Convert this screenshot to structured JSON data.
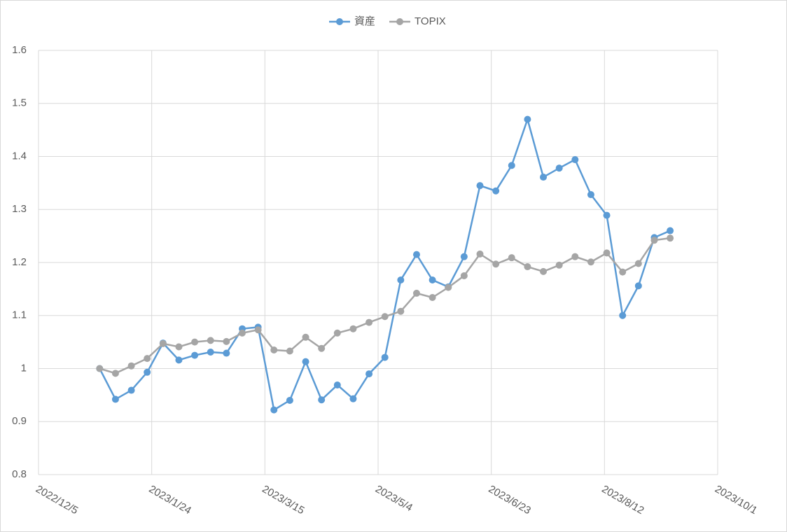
{
  "chart_data": {
    "type": "line",
    "x": [
      "2023/1/1",
      "2023/1/8",
      "2023/1/15",
      "2023/1/22",
      "2023/1/29",
      "2023/2/5",
      "2023/2/12",
      "2023/2/19",
      "2023/2/26",
      "2023/3/5",
      "2023/3/12",
      "2023/3/19",
      "2023/3/26",
      "2023/4/2",
      "2023/4/9",
      "2023/4/16",
      "2023/4/23",
      "2023/4/30",
      "2023/5/7",
      "2023/5/14",
      "2023/5/21",
      "2023/5/28",
      "2023/6/4",
      "2023/6/11",
      "2023/6/18",
      "2023/6/25",
      "2023/7/2",
      "2023/7/9",
      "2023/7/16",
      "2023/7/23",
      "2023/7/30",
      "2023/8/6",
      "2023/8/13",
      "2023/8/20",
      "2023/8/27",
      "2023/9/3",
      "2023/9/10"
    ],
    "series": [
      {
        "name": "資産",
        "color": "#5b9bd5",
        "values": [
          1.0,
          0.942,
          0.959,
          0.993,
          1.048,
          1.016,
          1.025,
          1.031,
          1.029,
          1.075,
          1.078,
          0.922,
          0.94,
          1.013,
          0.941,
          0.969,
          0.943,
          0.99,
          1.021,
          1.167,
          1.215,
          1.167,
          1.154,
          1.211,
          1.345,
          1.335,
          1.383,
          1.47,
          1.361,
          1.378,
          1.394,
          1.328,
          1.289,
          1.1,
          1.156,
          1.247,
          1.26
        ]
      },
      {
        "name": "TOPIX",
        "color": "#a5a5a5",
        "values": [
          1.0,
          0.991,
          1.005,
          1.019,
          1.047,
          1.041,
          1.05,
          1.053,
          1.051,
          1.067,
          1.073,
          1.035,
          1.033,
          1.059,
          1.038,
          1.067,
          1.075,
          1.087,
          1.098,
          1.108,
          1.142,
          1.134,
          1.153,
          1.175,
          1.216,
          1.197,
          1.209,
          1.192,
          1.183,
          1.195,
          1.211,
          1.201,
          1.218,
          1.182,
          1.198,
          1.242,
          1.246
        ]
      }
    ],
    "xlim": [
      "2022/12/5",
      "2023/10/1"
    ],
    "xticks": [
      "2022/12/5",
      "2023/1/24",
      "2023/3/15",
      "2023/5/4",
      "2023/6/23",
      "2023/8/12",
      "2023/10/1"
    ],
    "ylim": [
      0.8,
      1.6
    ],
    "yticks": [
      0.8,
      0.9,
      1,
      1.1,
      1.2,
      1.3,
      1.4,
      1.5,
      1.6
    ],
    "grid": true,
    "legend": "top"
  }
}
